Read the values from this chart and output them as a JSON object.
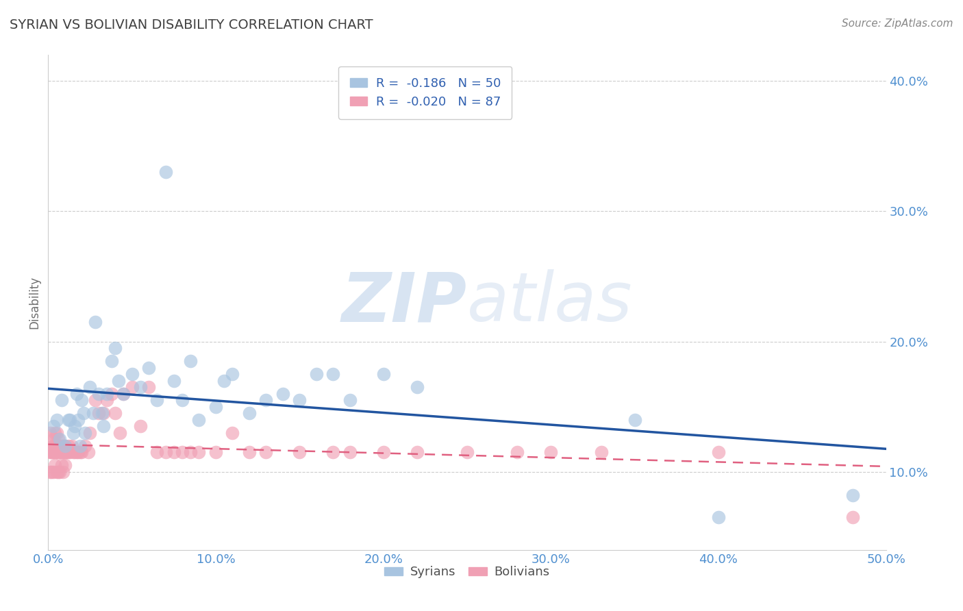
{
  "title": "SYRIAN VS BOLIVIAN DISABILITY CORRELATION CHART",
  "source": "Source: ZipAtlas.com",
  "ylabel": "Disability",
  "xlabel_ticks": [
    "0.0%",
    "10.0%",
    "20.0%",
    "30.0%",
    "40.0%",
    "50.0%"
  ],
  "xlabel_vals": [
    0.0,
    0.1,
    0.2,
    0.3,
    0.4,
    0.5
  ],
  "ylabel_ticks": [
    "10.0%",
    "20.0%",
    "30.0%",
    "40.0%"
  ],
  "ylabel_vals": [
    0.1,
    0.2,
    0.3,
    0.4
  ],
  "xmin": 0.0,
  "xmax": 0.5,
  "ymin": 0.04,
  "ymax": 0.42,
  "legend_line1": "R =  -0.186   N = 50",
  "legend_line2": "R =  -0.020   N = 87",
  "syrians_color": "#a8c4e0",
  "bolivians_color": "#f0a0b4",
  "blue_line_color": "#2255a0",
  "pink_line_color": "#e06080",
  "title_color": "#404040",
  "axis_label_color": "#5090d0",
  "syrians_x": [
    0.003,
    0.005,
    0.007,
    0.008,
    0.01,
    0.012,
    0.013,
    0.015,
    0.016,
    0.017,
    0.018,
    0.019,
    0.02,
    0.021,
    0.022,
    0.025,
    0.027,
    0.028,
    0.03,
    0.032,
    0.033,
    0.035,
    0.038,
    0.04,
    0.042,
    0.045,
    0.05,
    0.055,
    0.06,
    0.065,
    0.07,
    0.075,
    0.08,
    0.085,
    0.09,
    0.1,
    0.105,
    0.11,
    0.12,
    0.13,
    0.14,
    0.15,
    0.16,
    0.17,
    0.18,
    0.2,
    0.22,
    0.35,
    0.4,
    0.48
  ],
  "syrians_y": [
    0.135,
    0.14,
    0.125,
    0.155,
    0.12,
    0.14,
    0.14,
    0.13,
    0.135,
    0.16,
    0.14,
    0.12,
    0.155,
    0.145,
    0.13,
    0.165,
    0.145,
    0.215,
    0.16,
    0.145,
    0.135,
    0.16,
    0.185,
    0.195,
    0.17,
    0.16,
    0.175,
    0.165,
    0.18,
    0.155,
    0.33,
    0.17,
    0.155,
    0.185,
    0.14,
    0.15,
    0.17,
    0.175,
    0.145,
    0.155,
    0.16,
    0.155,
    0.175,
    0.175,
    0.155,
    0.175,
    0.165,
    0.14,
    0.065,
    0.082
  ],
  "bolivians_x": [
    0.001,
    0.001,
    0.001,
    0.002,
    0.002,
    0.002,
    0.002,
    0.003,
    0.003,
    0.003,
    0.003,
    0.003,
    0.004,
    0.004,
    0.004,
    0.004,
    0.005,
    0.005,
    0.005,
    0.005,
    0.005,
    0.005,
    0.006,
    0.006,
    0.006,
    0.006,
    0.007,
    0.007,
    0.007,
    0.007,
    0.008,
    0.008,
    0.008,
    0.009,
    0.009,
    0.009,
    0.01,
    0.01,
    0.01,
    0.01,
    0.011,
    0.011,
    0.012,
    0.012,
    0.013,
    0.014,
    0.015,
    0.016,
    0.017,
    0.018,
    0.019,
    0.02,
    0.022,
    0.024,
    0.025,
    0.028,
    0.03,
    0.033,
    0.035,
    0.038,
    0.04,
    0.043,
    0.045,
    0.05,
    0.055,
    0.06,
    0.065,
    0.07,
    0.075,
    0.08,
    0.085,
    0.09,
    0.1,
    0.11,
    0.12,
    0.13,
    0.15,
    0.17,
    0.18,
    0.2,
    0.22,
    0.25,
    0.28,
    0.3,
    0.33,
    0.4,
    0.48
  ],
  "bolivians_y": [
    0.1,
    0.115,
    0.13,
    0.1,
    0.115,
    0.115,
    0.12,
    0.1,
    0.115,
    0.115,
    0.12,
    0.125,
    0.105,
    0.115,
    0.12,
    0.13,
    0.1,
    0.115,
    0.115,
    0.115,
    0.12,
    0.13,
    0.1,
    0.115,
    0.12,
    0.125,
    0.1,
    0.115,
    0.115,
    0.12,
    0.105,
    0.115,
    0.12,
    0.1,
    0.115,
    0.12,
    0.105,
    0.115,
    0.115,
    0.12,
    0.115,
    0.115,
    0.115,
    0.12,
    0.115,
    0.12,
    0.115,
    0.115,
    0.115,
    0.115,
    0.115,
    0.115,
    0.12,
    0.115,
    0.13,
    0.155,
    0.145,
    0.145,
    0.155,
    0.16,
    0.145,
    0.13,
    0.16,
    0.165,
    0.135,
    0.165,
    0.115,
    0.115,
    0.115,
    0.115,
    0.115,
    0.115,
    0.115,
    0.13,
    0.115,
    0.115,
    0.115,
    0.115,
    0.115,
    0.115,
    0.115,
    0.115,
    0.115,
    0.115,
    0.115,
    0.115,
    0.065
  ]
}
